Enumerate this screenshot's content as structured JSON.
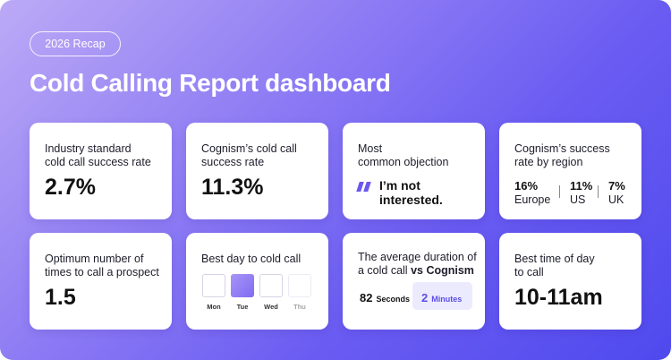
{
  "badge": "2026 Recap",
  "title": "Cold Calling Report dashboard",
  "cards": [
    {
      "label": [
        "Industry standard",
        "cold call success rate"
      ],
      "value": "2.7%"
    },
    {
      "label": [
        "Cognism’s cold call",
        "success rate"
      ],
      "value": "11.3%"
    },
    {
      "label": [
        "Most",
        "common objection"
      ],
      "quote": [
        "I’m not",
        "interested."
      ]
    },
    {
      "label": [
        "Cognism’s success",
        "rate by region"
      ],
      "regions": [
        {
          "value": "16%",
          "name": "Europe"
        },
        {
          "value": "11%",
          "name": "US"
        },
        {
          "value": "7%",
          "name": "UK"
        }
      ]
    },
    {
      "label": [
        "Optimum number of",
        "times to call a prospect"
      ],
      "value": "1.5"
    },
    {
      "label": [
        "Best day to cold call"
      ],
      "days": [
        "Mon",
        "Tue",
        "Wed",
        "Thu"
      ],
      "highlighted_day": 1
    },
    {
      "label": [
        "The average duration of",
        "a cold call"
      ],
      "label_bold": "vs Cognism",
      "compare": [
        {
          "value": "82",
          "unit": "Seconds"
        },
        {
          "value": "2",
          "unit": "Minutes"
        }
      ]
    },
    {
      "label": [
        "Best time of day",
        "to call"
      ],
      "value": "10-11am"
    }
  ]
}
